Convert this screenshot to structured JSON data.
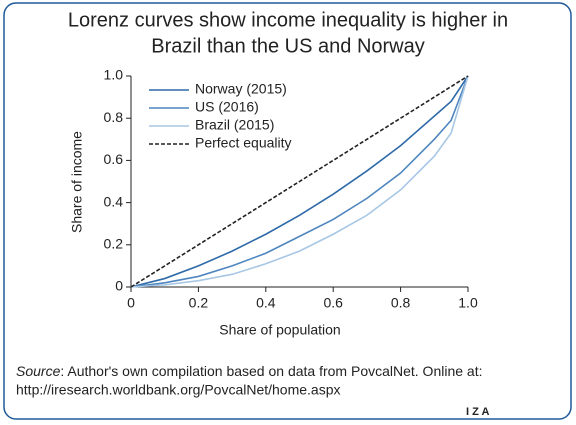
{
  "chart_data": {
    "type": "line",
    "title_lines": [
      "Lorenz curves show income inequality is higher in",
      "Brazil than the US and Norway"
    ],
    "x_label": "Share of population",
    "y_label": "Share of income",
    "x": [
      0,
      0.1,
      0.2,
      0.3,
      0.4,
      0.5,
      0.6,
      0.7,
      0.8,
      0.9,
      0.95,
      1.0
    ],
    "series": [
      {
        "name": "Norway (2015)",
        "color": "#2e6aa8",
        "dash": false,
        "values": [
          0,
          0.04,
          0.1,
          0.17,
          0.25,
          0.34,
          0.44,
          0.55,
          0.67,
          0.81,
          0.88,
          1.0
        ]
      },
      {
        "name": "US (2016)",
        "color": "#4f86c0",
        "dash": false,
        "values": [
          0,
          0.02,
          0.05,
          0.1,
          0.16,
          0.24,
          0.32,
          0.42,
          0.54,
          0.7,
          0.79,
          1.0
        ]
      },
      {
        "name": "Brazil (2015)",
        "color": "#a7c7e4",
        "dash": false,
        "values": [
          0,
          0.01,
          0.03,
          0.06,
          0.11,
          0.17,
          0.25,
          0.34,
          0.46,
          0.62,
          0.73,
          1.0
        ]
      },
      {
        "name": "Perfect equality",
        "color": "#222222",
        "dash": true,
        "values": [
          0,
          0.1,
          0.2,
          0.3,
          0.4,
          0.5,
          0.6,
          0.7,
          0.8,
          0.9,
          0.95,
          1.0
        ]
      }
    ],
    "xlim": [
      0,
      1
    ],
    "ylim": [
      0,
      1
    ],
    "xticks": [
      0,
      0.2,
      0.4,
      0.6,
      0.8,
      {
        "value": 1,
        "label": "1.0"
      }
    ],
    "yticks": [
      0,
      0.2,
      0.4,
      0.6,
      0.8,
      {
        "value": 1,
        "label": "1.0"
      }
    ],
    "legend": "upper left",
    "source_label": "Source",
    "source_text": ": Author's own compilation based on data from PovcalNet. Online at:",
    "source_url": "http://iresearch.worldbank.org/PovcalNet/home.aspx",
    "logo": "I Z A"
  }
}
